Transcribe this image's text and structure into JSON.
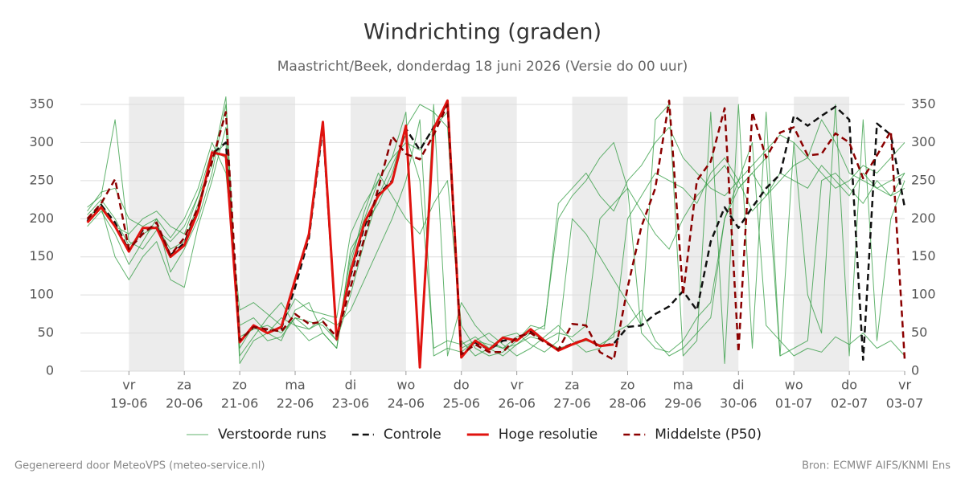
{
  "chart_data": {
    "type": "line",
    "title": "Windrichting (graden)",
    "subtitle": "Maastricht/Beek, donderdag 18 juni 2026 (Versie do 00 uur)",
    "footer_left": "Gegenereerd door MeteoVPS (meteo-service.nl)",
    "footer_right": "Bron: ECMWF AIFS/KNMI Ens",
    "xlim": [
      -0.5,
      59
    ],
    "xticks": [
      {
        "value": 3,
        "day": "vr",
        "date": "19-06"
      },
      {
        "value": 7,
        "day": "za",
        "date": "20-06"
      },
      {
        "value": 11,
        "day": "zo",
        "date": "21-06"
      },
      {
        "value": 15,
        "day": "ma",
        "date": "22-06"
      },
      {
        "value": 19,
        "day": "di",
        "date": "23-06"
      },
      {
        "value": 23,
        "day": "wo",
        "date": "24-06"
      },
      {
        "value": 27,
        "day": "do",
        "date": "25-06"
      },
      {
        "value": 31,
        "day": "vr",
        "date": "26-06"
      },
      {
        "value": 35,
        "day": "za",
        "date": "27-06"
      },
      {
        "value": 39,
        "day": "zo",
        "date": "28-06"
      },
      {
        "value": 43,
        "day": "ma",
        "date": "29-06"
      },
      {
        "value": 47,
        "day": "di",
        "date": "30-06"
      },
      {
        "value": 51,
        "day": "wo",
        "date": "01-07"
      },
      {
        "value": 55,
        "day": "do",
        "date": "02-07"
      },
      {
        "value": 59,
        "day": "vr",
        "date": "03-07"
      }
    ],
    "ylim": [
      0,
      360
    ],
    "yticks": [
      0,
      50,
      100,
      150,
      200,
      250,
      300,
      350
    ],
    "grid": true,
    "ensemble": {
      "name": "Verstoorde runs",
      "color": "#2e9a3e",
      "runs": [
        [
          205,
          225,
          200,
          165,
          180,
          190,
          160,
          170,
          220,
          280,
          300,
          45,
          55,
          60,
          50,
          70,
          65,
          60,
          40,
          150,
          200,
          250,
          280,
          300,
          290,
          320,
          340,
          30,
          40,
          35,
          30,
          45,
          50,
          40,
          30,
          35,
          40,
          35,
          45,
          200,
          230,
          260,
          250,
          240,
          220,
          260,
          280,
          250,
          210,
          230,
          260,
          250,
          240,
          270,
          250,
          230,
          260,
          240,
          250,
          260
        ],
        [
          190,
          210,
          180,
          140,
          170,
          200,
          130,
          160,
          200,
          260,
          350,
          20,
          45,
          70,
          90,
          60,
          55,
          70,
          60,
          80,
          120,
          160,
          200,
          250,
          330,
          20,
          30,
          25,
          40,
          50,
          35,
          20,
          30,
          45,
          60,
          40,
          25,
          30,
          50,
          60,
          80,
          40,
          20,
          30,
          50,
          70,
          200,
          250,
          300,
          60,
          40,
          20,
          30,
          25,
          45,
          35,
          50,
          30,
          40,
          20
        ],
        [
          215,
          230,
          330,
          170,
          160,
          185,
          170,
          190,
          230,
          290,
          280,
          60,
          70,
          50,
          40,
          80,
          90,
          50,
          30,
          140,
          210,
          260,
          230,
          200,
          180,
          220,
          250,
          60,
          30,
          20,
          25,
          40,
          60,
          55,
          220,
          240,
          260,
          230,
          210,
          250,
          270,
          300,
          320,
          280,
          260,
          240,
          230,
          250,
          270,
          290,
          310,
          300,
          280,
          260,
          240,
          250,
          270,
          260,
          280,
          300
        ],
        [
          200,
          220,
          190,
          180,
          200,
          210,
          190,
          180,
          230,
          270,
          360,
          10,
          40,
          50,
          70,
          60,
          40,
          50,
          30,
          160,
          190,
          220,
          260,
          320,
          350,
          340,
          320,
          40,
          20,
          30,
          45,
          50,
          35,
          25,
          40,
          200,
          180,
          150,
          120,
          90,
          60,
          330,
          350,
          20,
          40,
          340,
          10,
          350,
          30,
          340,
          20,
          300,
          100,
          50,
          350,
          20,
          330,
          40,
          200,
          250
        ],
        [
          198,
          215,
          150,
          120,
          150,
          170,
          120,
          110,
          190,
          250,
          320,
          30,
          60,
          40,
          45,
          70,
          55,
          65,
          40,
          100,
          170,
          230,
          270,
          310,
          250,
          30,
          40,
          35,
          45,
          30,
          20,
          35,
          45,
          40,
          50,
          45,
          60,
          200,
          220,
          240,
          50,
          30,
          25,
          40,
          70,
          90,
          200,
          240,
          260,
          280,
          20,
          30,
          40,
          250,
          260,
          240,
          220,
          250,
          230,
          240
        ],
        [
          210,
          235,
          240,
          200,
          190,
          200,
          175,
          200,
          240,
          300,
          260,
          80,
          90,
          75,
          60,
          95,
          80,
          75,
          70,
          180,
          220,
          250,
          280,
          340,
          10,
          350,
          20,
          90,
          60,
          40,
          30,
          35,
          50,
          60,
          200,
          230,
          250,
          280,
          300,
          240,
          210,
          180,
          160,
          200,
          230,
          250,
          270,
          240,
          260,
          230,
          250,
          270,
          280,
          330,
          300,
          260,
          250,
          240,
          230,
          260
        ]
      ]
    },
    "series": [
      {
        "name": "Controle",
        "color": "#111111",
        "dash": true,
        "width": 2.5,
        "values": [
          197,
          218,
          195,
          158,
          185,
          190,
          152,
          168,
          212,
          285,
          300,
          40,
          58,
          52,
          56,
          110,
          175,
          320,
          44,
          125,
          190,
          232,
          250,
          318,
          290,
          320,
          352,
          20,
          38,
          28,
          40,
          42,
          52,
          40,
          28,
          36,
          42,
          33,
          36,
          58,
          60,
          75,
          85,
          105,
          80,
          170,
          215,
          188,
          215,
          240,
          258,
          335,
          322,
          335,
          347,
          330,
          15,
          325,
          310,
          215
        ]
      },
      {
        "name": "Hoge resolutie",
        "color": "#e0130f",
        "dash": false,
        "width": 3,
        "values": [
          195,
          215,
          190,
          157,
          188,
          188,
          150,
          165,
          210,
          287,
          283,
          38,
          60,
          50,
          58,
          120,
          180,
          327,
          42,
          130,
          195,
          230,
          248,
          322,
          5,
          318,
          355,
          18,
          40,
          28,
          44,
          40,
          55,
          40,
          27,
          35,
          42,
          33,
          35,
          null,
          null,
          null,
          null,
          null,
          null,
          null,
          null,
          null,
          null,
          null,
          null,
          null,
          null,
          null,
          null,
          null,
          null,
          null,
          null,
          null
        ]
      },
      {
        "name": "Middelste (P50)",
        "color": "#8b0000",
        "dash": true,
        "width": 2.5,
        "values": [
          200,
          220,
          252,
          160,
          180,
          195,
          152,
          175,
          215,
          275,
          340,
          40,
          58,
          55,
          52,
          75,
          62,
          65,
          45,
          110,
          175,
          240,
          308,
          285,
          278,
          310,
          350,
          22,
          35,
          25,
          25,
          45,
          50,
          38,
          28,
          62,
          60,
          25,
          15,
          110,
          190,
          240,
          355,
          100,
          250,
          275,
          345,
          25,
          340,
          280,
          313,
          320,
          283,
          285,
          312,
          300,
          253,
          283,
          315,
          15
        ]
      }
    ]
  }
}
